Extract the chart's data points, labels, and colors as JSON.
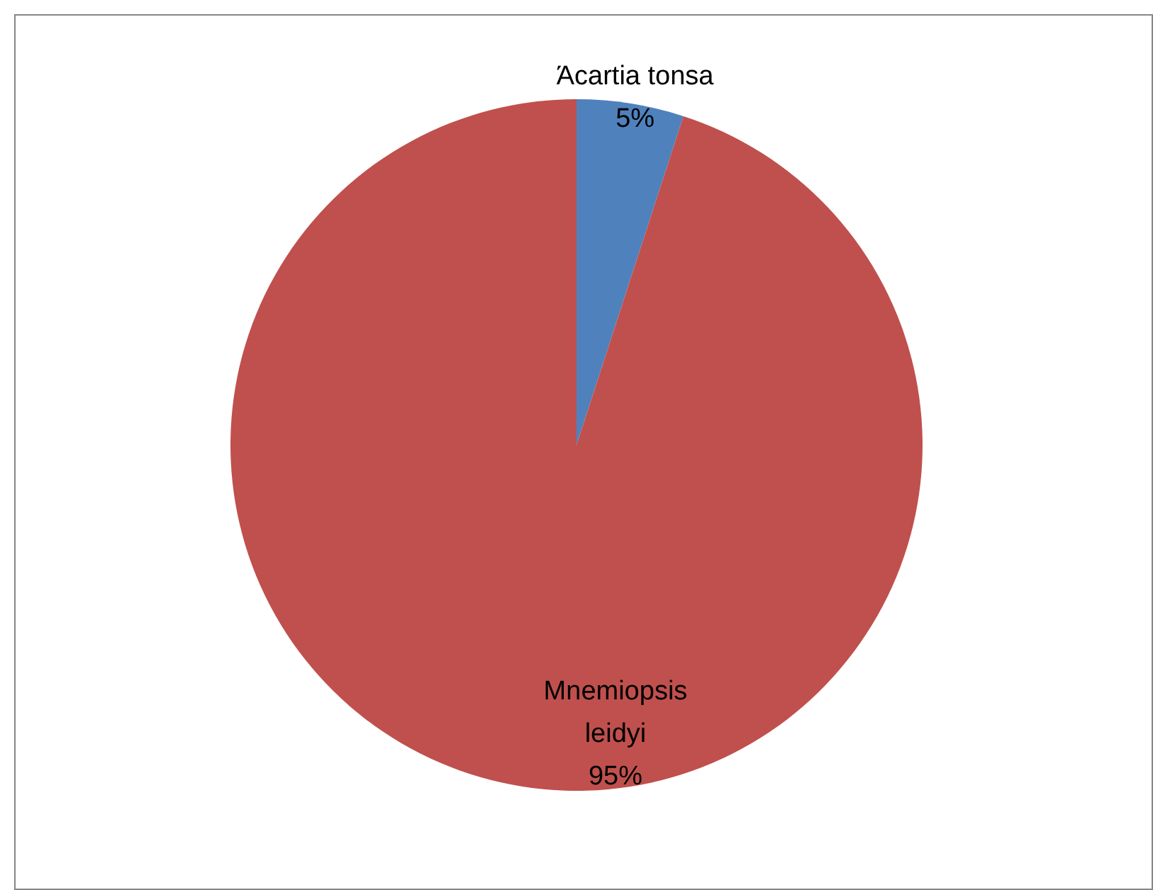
{
  "chart_data": {
    "type": "pie",
    "categories": [
      "Άcartia tonsa",
      "Mnemiopsis leidyi"
    ],
    "values": [
      5,
      95
    ],
    "colors": [
      "#4f81bd",
      "#c0504d"
    ],
    "value_labels": [
      "5%",
      "95%"
    ]
  }
}
